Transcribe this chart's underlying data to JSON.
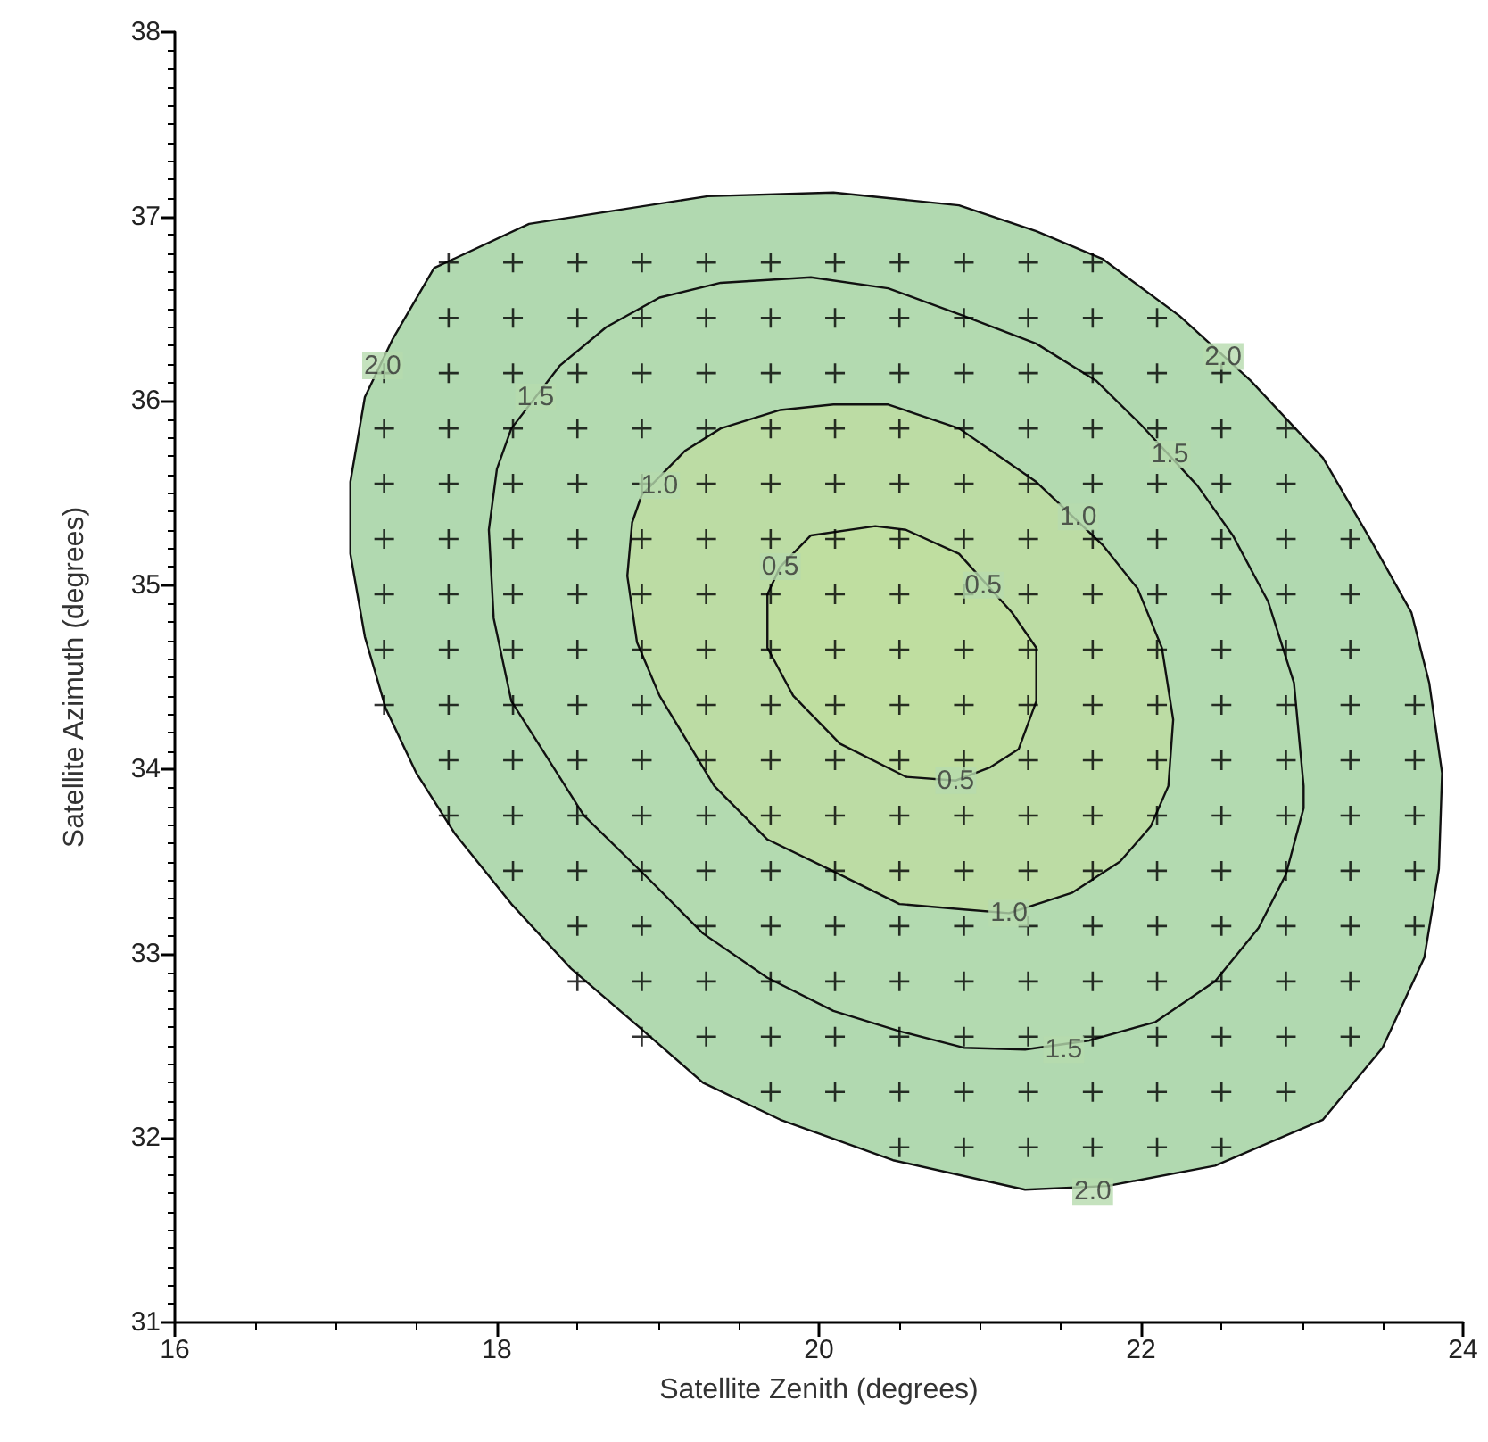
{
  "chart_data": {
    "type": "scatter",
    "xlabel": "Satellite Zenith (degrees)",
    "ylabel": "Satellite Azimuth (degrees)",
    "xlim": [
      16,
      24
    ],
    "xticks": [
      16,
      18,
      20,
      22,
      24
    ],
    "ylim": [
      31,
      38
    ],
    "yticks": [
      31,
      32,
      33,
      34,
      35,
      36,
      37,
      38
    ],
    "grid": false,
    "marker": "cross",
    "series": [
      {
        "type": "area",
        "marker": "none",
        "color": "#b1d9b0",
        "x": [
          21.35,
          20.87,
          20.09,
          19.31,
          18.2,
          17.61,
          17.35,
          17.18,
          17.09,
          17.09,
          17.18,
          17.31,
          17.5,
          17.74,
          18.09,
          18.46,
          18.9,
          19.28,
          19.76,
          20.46,
          21.28,
          21.79,
          22.46,
          23.13,
          23.5,
          23.76,
          23.85,
          23.87,
          23.79,
          23.68,
          23.43,
          23.13,
          22.68,
          22.24,
          21.76
        ],
        "values": [
          36.92,
          37.06,
          37.13,
          37.11,
          36.96,
          36.72,
          36.33,
          36.02,
          35.56,
          35.17,
          34.72,
          34.33,
          33.98,
          33.65,
          33.27,
          32.92,
          32.59,
          32.3,
          32.1,
          31.88,
          31.72,
          31.74,
          31.85,
          32.1,
          32.49,
          32.98,
          33.46,
          33.98,
          34.47,
          34.85,
          35.24,
          35.69,
          36.11,
          36.46,
          36.77
        ]
      },
      {
        "type": "area",
        "marker": "none",
        "color": "#b3dab0",
        "x": [
          18.39,
          18.68,
          19.01,
          19.39,
          19.95,
          20.43,
          20.9,
          21.35,
          21.72,
          22.0,
          22.35,
          22.57,
          22.79,
          22.95,
          23.01,
          23.01,
          22.9,
          22.73,
          22.46,
          22.09,
          21.68,
          21.28,
          20.9,
          20.5,
          20.09,
          19.68,
          19.28,
          18.95,
          18.54,
          18.28,
          18.09,
          17.98,
          17.95,
          18.0,
          18.09
        ],
        "values": [
          36.19,
          36.4,
          36.56,
          36.64,
          36.67,
          36.61,
          36.46,
          36.31,
          36.11,
          35.87,
          35.54,
          35.27,
          34.91,
          34.47,
          33.91,
          33.79,
          33.43,
          33.14,
          32.85,
          32.63,
          32.53,
          32.48,
          32.49,
          32.58,
          32.69,
          32.87,
          33.11,
          33.4,
          33.75,
          34.11,
          34.37,
          34.82,
          35.3,
          35.63,
          35.85
        ]
      },
      {
        "type": "area",
        "marker": "none",
        "color": "#bcdca4",
        "x": [
          19.17,
          19.39,
          19.76,
          20.09,
          20.43,
          20.87,
          21.35,
          21.76,
          21.98,
          22.13,
          22.2,
          22.17,
          22.06,
          21.87,
          21.57,
          21.18,
          20.9,
          20.5,
          20.06,
          19.68,
          19.35,
          19.01,
          18.87,
          18.81,
          18.84,
          18.9
        ],
        "values": [
          35.73,
          35.85,
          35.95,
          35.98,
          35.98,
          35.85,
          35.56,
          35.22,
          34.98,
          34.66,
          34.27,
          33.91,
          33.69,
          33.5,
          33.33,
          33.22,
          33.24,
          33.27,
          33.46,
          33.62,
          33.91,
          34.4,
          34.69,
          35.05,
          35.34,
          35.49
        ]
      },
      {
        "type": "area",
        "marker": "none",
        "color": "#bfdea0",
        "x": [
          19.95,
          20.35,
          20.54,
          20.87,
          21.2,
          21.35,
          21.35,
          21.24,
          21.06,
          20.85,
          20.54,
          20.13,
          19.84,
          19.68,
          19.68,
          19.76
        ],
        "values": [
          35.27,
          35.32,
          35.3,
          35.17,
          34.85,
          34.66,
          34.37,
          34.11,
          34.01,
          33.94,
          33.96,
          34.14,
          34.4,
          34.66,
          34.95,
          35.1
        ]
      },
      {
        "color": "#000000",
        "x": [
          17.7,
          18.1,
          18.5,
          18.9,
          19.3,
          19.7,
          20.1,
          20.5,
          20.9,
          21.3,
          21.7
        ],
        "values": [
          36.75,
          36.75,
          36.75,
          36.75,
          36.75,
          36.75,
          36.75,
          36.75,
          36.75,
          36.75,
          36.75
        ]
      },
      {
        "color": "#000000",
        "x": [
          17.7,
          18.1,
          18.5,
          18.9,
          19.3,
          19.7,
          20.1,
          20.5,
          20.9,
          21.3,
          21.7,
          22.1
        ],
        "values": [
          36.45,
          36.45,
          36.45,
          36.45,
          36.45,
          36.45,
          36.45,
          36.45,
          36.45,
          36.45,
          36.45,
          36.45
        ]
      },
      {
        "color": "#000000",
        "x": [
          17.3,
          17.7,
          18.1,
          18.5,
          18.9,
          19.3,
          19.7,
          20.1,
          20.5,
          20.9,
          21.3,
          21.7,
          22.1,
          22.5
        ],
        "values": [
          36.15,
          36.15,
          36.15,
          36.15,
          36.15,
          36.15,
          36.15,
          36.15,
          36.15,
          36.15,
          36.15,
          36.15,
          36.15,
          36.15
        ]
      },
      {
        "color": "#000000",
        "x": [
          17.3,
          17.7,
          18.1,
          18.5,
          18.9,
          19.3,
          19.7,
          20.1,
          20.5,
          20.9,
          21.3,
          21.7,
          22.1,
          22.5,
          22.9
        ],
        "values": [
          35.85,
          35.85,
          35.85,
          35.85,
          35.85,
          35.85,
          35.85,
          35.85,
          35.85,
          35.85,
          35.85,
          35.85,
          35.85,
          35.85,
          35.85
        ]
      },
      {
        "color": "#000000",
        "x": [
          17.3,
          17.7,
          18.1,
          18.5,
          18.9,
          19.3,
          19.7,
          20.1,
          20.5,
          20.9,
          21.3,
          21.7,
          22.1,
          22.5,
          22.9
        ],
        "values": [
          35.55,
          35.55,
          35.55,
          35.55,
          35.55,
          35.55,
          35.55,
          35.55,
          35.55,
          35.55,
          35.55,
          35.55,
          35.55,
          35.55,
          35.55
        ]
      },
      {
        "color": "#000000",
        "x": [
          17.3,
          17.7,
          18.1,
          18.5,
          18.9,
          19.3,
          19.7,
          20.1,
          20.5,
          20.9,
          21.3,
          21.7,
          22.1,
          22.5,
          22.9,
          23.3
        ],
        "values": [
          35.25,
          35.25,
          35.25,
          35.25,
          35.25,
          35.25,
          35.25,
          35.25,
          35.25,
          35.25,
          35.25,
          35.25,
          35.25,
          35.25,
          35.25,
          35.25
        ]
      },
      {
        "color": "#000000",
        "x": [
          17.3,
          17.7,
          18.1,
          18.5,
          18.9,
          19.3,
          19.7,
          20.1,
          20.5,
          20.9,
          21.3,
          21.7,
          22.1,
          22.5,
          22.9,
          23.3
        ],
        "values": [
          34.95,
          34.95,
          34.95,
          34.95,
          34.95,
          34.95,
          34.95,
          34.95,
          34.95,
          34.95,
          34.95,
          34.95,
          34.95,
          34.95,
          34.95,
          34.95
        ]
      },
      {
        "color": "#000000",
        "x": [
          17.3,
          17.7,
          18.1,
          18.5,
          18.9,
          19.3,
          19.7,
          20.1,
          20.5,
          20.9,
          21.3,
          21.7,
          22.1,
          22.5,
          22.9,
          23.3
        ],
        "values": [
          34.65,
          34.65,
          34.65,
          34.65,
          34.65,
          34.65,
          34.65,
          34.65,
          34.65,
          34.65,
          34.65,
          34.65,
          34.65,
          34.65,
          34.65,
          34.65
        ]
      },
      {
        "color": "#000000",
        "x": [
          17.3,
          17.7,
          18.1,
          18.5,
          18.9,
          19.3,
          19.7,
          20.1,
          20.5,
          20.9,
          21.3,
          21.7,
          22.1,
          22.5,
          22.9,
          23.3,
          23.7
        ],
        "values": [
          34.35,
          34.35,
          34.35,
          34.35,
          34.35,
          34.35,
          34.35,
          34.35,
          34.35,
          34.35,
          34.35,
          34.35,
          34.35,
          34.35,
          34.35,
          34.35,
          34.35
        ]
      },
      {
        "color": "#000000",
        "x": [
          17.7,
          18.1,
          18.5,
          18.9,
          19.3,
          19.7,
          20.1,
          20.5,
          20.9,
          21.3,
          21.7,
          22.1,
          22.5,
          22.9,
          23.3,
          23.7
        ],
        "values": [
          34.05,
          34.05,
          34.05,
          34.05,
          34.05,
          34.05,
          34.05,
          34.05,
          34.05,
          34.05,
          34.05,
          34.05,
          34.05,
          34.05,
          34.05,
          34.05
        ]
      },
      {
        "color": "#000000",
        "x": [
          17.7,
          18.1,
          18.5,
          18.9,
          19.3,
          19.7,
          20.1,
          20.5,
          20.9,
          21.3,
          21.7,
          22.1,
          22.5,
          22.9,
          23.3,
          23.7
        ],
        "values": [
          33.75,
          33.75,
          33.75,
          33.75,
          33.75,
          33.75,
          33.75,
          33.75,
          33.75,
          33.75,
          33.75,
          33.75,
          33.75,
          33.75,
          33.75,
          33.75
        ]
      },
      {
        "color": "#000000",
        "x": [
          18.1,
          18.5,
          18.9,
          19.3,
          19.7,
          20.1,
          20.5,
          20.9,
          21.3,
          21.7,
          22.1,
          22.5,
          22.9,
          23.3,
          23.7
        ],
        "values": [
          33.45,
          33.45,
          33.45,
          33.45,
          33.45,
          33.45,
          33.45,
          33.45,
          33.45,
          33.45,
          33.45,
          33.45,
          33.45,
          33.45,
          33.45
        ]
      },
      {
        "color": "#000000",
        "x": [
          18.5,
          18.9,
          19.3,
          19.7,
          20.1,
          20.5,
          20.9,
          21.3,
          21.7,
          22.1,
          22.5,
          22.9,
          23.3,
          23.7
        ],
        "values": [
          33.15,
          33.15,
          33.15,
          33.15,
          33.15,
          33.15,
          33.15,
          33.15,
          33.15,
          33.15,
          33.15,
          33.15,
          33.15,
          33.15
        ]
      },
      {
        "color": "#000000",
        "x": [
          18.5,
          18.9,
          19.3,
          19.7,
          20.1,
          20.5,
          20.9,
          21.3,
          21.7,
          22.1,
          22.5,
          22.9,
          23.3
        ],
        "values": [
          32.85,
          32.85,
          32.85,
          32.85,
          32.85,
          32.85,
          32.85,
          32.85,
          32.85,
          32.85,
          32.85,
          32.85,
          32.85
        ]
      },
      {
        "color": "#000000",
        "x": [
          18.9,
          19.3,
          19.7,
          20.1,
          20.5,
          20.9,
          21.3,
          21.7,
          22.1,
          22.5,
          22.9,
          23.3
        ],
        "values": [
          32.55,
          32.55,
          32.55,
          32.55,
          32.55,
          32.55,
          32.55,
          32.55,
          32.55,
          32.55,
          32.55,
          32.55
        ]
      },
      {
        "color": "#000000",
        "x": [
          19.7,
          20.1,
          20.5,
          20.9,
          21.3,
          21.7,
          22.1,
          22.5,
          22.9
        ],
        "values": [
          32.25,
          32.25,
          32.25,
          32.25,
          32.25,
          32.25,
          32.25,
          32.25,
          32.25
        ]
      },
      {
        "color": "#000000",
        "x": [
          20.5,
          20.9,
          21.3,
          21.7,
          22.1,
          22.5
        ],
        "values": [
          31.95,
          31.95,
          31.95,
          31.95,
          31.95,
          31.95
        ]
      }
    ],
    "annotations": [
      {
        "text": "2.0",
        "x": 17.29,
        "y": 36.19
      },
      {
        "text": "2.0",
        "x": 22.51,
        "y": 36.24
      },
      {
        "text": "2.0",
        "x": 21.7,
        "y": 31.71
      },
      {
        "text": "1.5",
        "x": 18.24,
        "y": 36.02
      },
      {
        "text": "1.5",
        "x": 22.18,
        "y": 35.71
      },
      {
        "text": "1.5",
        "x": 21.52,
        "y": 32.48
      },
      {
        "text": "1.0",
        "x": 19.01,
        "y": 35.54
      },
      {
        "text": "1.0",
        "x": 21.61,
        "y": 35.37
      },
      {
        "text": "1.0",
        "x": 21.18,
        "y": 33.22
      },
      {
        "text": "0.5",
        "x": 19.76,
        "y": 35.1
      },
      {
        "text": "0.5",
        "x": 21.02,
        "y": 35.0
      },
      {
        "text": "0.5",
        "x": 20.85,
        "y": 33.94
      }
    ]
  }
}
